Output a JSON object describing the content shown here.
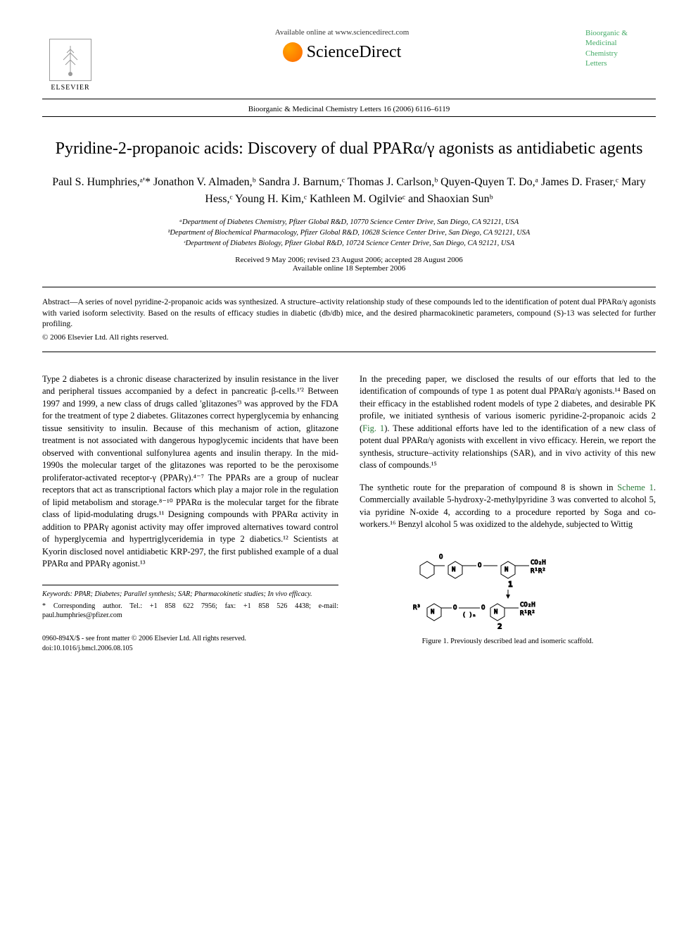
{
  "header": {
    "elsevier_label": "ELSEVIER",
    "available_online": "Available online at www.sciencedirect.com",
    "sciencedirect": "ScienceDirect",
    "journal_name_lines": [
      "Bioorganic &",
      "Medicinal",
      "Chemistry",
      "Letters"
    ],
    "journal_ref": "Bioorganic & Medicinal Chemistry Letters 16 (2006) 6116–6119"
  },
  "title": "Pyridine-2-propanoic acids: Discovery of dual PPARα/γ agonists as antidiabetic agents",
  "authors_html": "Paul S. Humphries,ᵃ'* Jonathon V. Almaden,ᵇ Sandra J. Barnum,ᶜ Thomas J. Carlson,ᵇ Quyen-Quyen T. Do,ᵃ James D. Fraser,ᶜ Mary Hess,ᶜ Young H. Kim,ᶜ Kathleen M. Ogilvieᶜ and Shaoxian Sunᵇ",
  "affiliations": [
    "ᵃDepartment of Diabetes Chemistry, Pfizer Global R&D, 10770 Science Center Drive, San Diego, CA 92121, USA",
    "ᵇDepartment of Biochemical Pharmacology, Pfizer Global R&D, 10628 Science Center Drive, San Diego, CA 92121, USA",
    "ᶜDepartment of Diabetes Biology, Pfizer Global R&D, 10724 Science Center Drive, San Diego, CA 92121, USA"
  ],
  "dates": {
    "received": "Received 9 May 2006; revised 23 August 2006; accepted 28 August 2006",
    "available": "Available online 18 September 2006"
  },
  "abstract": "Abstract—A series of novel pyridine-2-propanoic acids was synthesized. A structure–activity relationship study of these compounds led to the identification of potent dual PPARα/γ agonists with varied isoform selectivity. Based on the results of efficacy studies in diabetic (db/db) mice, and the desired pharmacokinetic parameters, compound (S)-13 was selected for further profiling.",
  "abstract_copyright": "© 2006 Elsevier Ltd. All rights reserved.",
  "body": {
    "left_p1": "Type 2 diabetes is a chronic disease characterized by insulin resistance in the liver and peripheral tissues accompanied by a defect in pancreatic β-cells.¹'² Between 1997 and 1999, a new class of drugs called 'glitazones'³ was approved by the FDA for the treatment of type 2 diabetes. Glitazones correct hyperglycemia by enhancing tissue sensitivity to insulin. Because of this mechanism of action, glitazone treatment is not associated with dangerous hypoglycemic incidents that have been observed with conventional sulfonylurea agents and insulin therapy. In the mid-1990s the molecular target of the glitazones was reported to be the peroxisome proliferator-activated receptor-γ (PPARγ).⁴⁻⁷ The PPARs are a group of nuclear receptors that act as transcriptional factors which play a major role in the regulation of lipid metabolism and storage.⁸⁻¹⁰ PPARα is the molecular target for the fibrate class of lipid-modulating drugs.¹¹ Designing compounds with PPARα activity in addition to PPARγ agonist activity may offer improved alternatives toward control of hyperglycemia and hypertriglyceridemia in type 2 diabetics.¹² Scientists at Kyorin disclosed novel antidiabetic KRP-297, the first published example of a dual PPARα and PPARγ agonist.¹³",
    "right_p1": "In the preceding paper, we disclosed the results of our efforts that led to the identification of compounds of type 1 as potent dual PPARα/γ agonists.¹⁴ Based on their efficacy in the established rodent models of type 2 diabetes, and desirable PK profile, we initiated synthesis of various isomeric pyridine-2-propanoic acids 2 (Fig. 1). These additional efforts have led to the identification of a new class of potent dual PPARα/γ agonists with excellent in vivo efficacy. Herein, we report the synthesis, structure–activity relationships (SAR), and in vivo activity of this new class of compounds.¹⁵",
    "right_p2": "The synthetic route for the preparation of compound 8 is shown in Scheme 1. Commercially available 5-hydroxy-2-methylpyridine 3 was converted to alcohol 5, via pyridine N-oxide 4, according to a procedure reported by Soga and co-workers.¹⁶ Benzyl alcohol 5 was oxidized to the aldehyde, subjected to Wittig",
    "fig1_label": "Fig. 1",
    "scheme1_label": "Scheme 1"
  },
  "figure": {
    "caption": "Figure 1. Previously described lead and isomeric scaffold.",
    "structure_1_label": "1",
    "structure_2_label": "2",
    "chem_notation_1": "Ph-N-O-CH₂-O-Pyr-CO₂H R¹R²",
    "chem_notation_2": "R³-Pyr-O-(CH₂)ₙ-O-Pyr-N-CO₂H R¹R²"
  },
  "footer": {
    "keywords_label": "Keywords:",
    "keywords": "PPAR; Diabetes; Parallel synthesis; SAR; Pharmacokinetic studies; In vivo efficacy.",
    "corresponding": "* Corresponding author. Tel.: +1 858 622 7956; fax: +1 858 526 4438; e-mail: paul.humphries@pfizer.com",
    "issn": "0960-894X/$ - see front matter © 2006 Elsevier Ltd. All rights reserved.",
    "doi": "doi:10.1016/j.bmcl.2006.08.105"
  },
  "colors": {
    "text": "#000000",
    "link_green": "#2a7a3a",
    "journal_green": "#44aa66",
    "sd_orange": "#ff7700",
    "background": "#ffffff"
  },
  "typography": {
    "title_fontsize": 24,
    "authors_fontsize": 16,
    "body_fontsize": 12.5,
    "abstract_fontsize": 11.5,
    "footer_fontsize": 10
  }
}
